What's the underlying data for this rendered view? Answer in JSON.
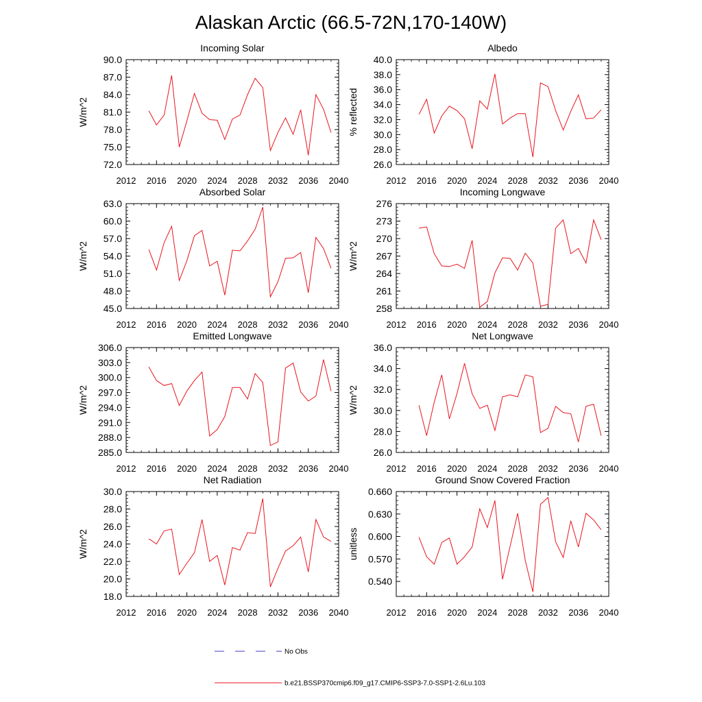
{
  "figure": {
    "title": "Alaskan Arctic (66.5-72N,170-140W)",
    "legend": [
      {
        "label": "No Obs",
        "color": "#3b3bbf",
        "style": "dashed"
      },
      {
        "label": "b.e21.BSSP370cmip6.f09_g17.CMIP6-SSP3-7.0-SSP1-2.6Lu.103",
        "color": "#e8141c",
        "style": "solid"
      }
    ]
  },
  "chart_data": [
    {
      "type": "line",
      "title": "Incoming Solar",
      "ylabel": "W/m^2",
      "xlim": [
        2012,
        2040
      ],
      "xticks": [
        2012,
        2016,
        2020,
        2024,
        2028,
        2032,
        2036,
        2040
      ],
      "ylim": [
        72,
        90
      ],
      "yticks": [
        72,
        75,
        78,
        81,
        84,
        87,
        90
      ],
      "ydecimals": 1,
      "x": [
        2015,
        2016,
        2017,
        2018,
        2019,
        2020,
        2021,
        2022,
        2023,
        2024,
        2025,
        2026,
        2027,
        2028,
        2029,
        2030,
        2031,
        2032,
        2033,
        2034,
        2035,
        2036,
        2037,
        2038,
        2039
      ],
      "series": [
        {
          "name": "b.e21.BSSP370cmip6.f09_g17.CMIP6-SSP3-7.0-SSP1-2.6Lu.103",
          "color": "#e8141c",
          "values": [
            81.2,
            78.8,
            80.5,
            87.3,
            75.0,
            79.5,
            84.2,
            80.8,
            79.7,
            79.6,
            76.3,
            79.8,
            80.5,
            84.0,
            86.8,
            85.2,
            74.4,
            77.5,
            80.0,
            77.2,
            81.4,
            73.6,
            84.0,
            81.5,
            77.5
          ]
        }
      ]
    },
    {
      "type": "line",
      "title": "Albedo",
      "ylabel": "% reflected",
      "xlim": [
        2012,
        2040
      ],
      "xticks": [
        2012,
        2016,
        2020,
        2024,
        2028,
        2032,
        2036,
        2040
      ],
      "ylim": [
        26,
        40
      ],
      "yticks": [
        26,
        28,
        30,
        32,
        34,
        36,
        38,
        40
      ],
      "ydecimals": 1,
      "x": [
        2015,
        2016,
        2017,
        2018,
        2019,
        2020,
        2021,
        2022,
        2023,
        2024,
        2025,
        2026,
        2027,
        2028,
        2029,
        2030,
        2031,
        2032,
        2033,
        2034,
        2035,
        2036,
        2037,
        2038,
        2039
      ],
      "series": [
        {
          "name": "b.e21.BSSP370cmip6.f09_g17.CMIP6-SSP3-7.0-SSP1-2.6Lu.103",
          "color": "#e8141c",
          "values": [
            32.7,
            34.7,
            30.2,
            32.5,
            33.8,
            33.2,
            32.1,
            28.1,
            34.5,
            33.4,
            38.1,
            31.4,
            32.2,
            32.8,
            32.8,
            27.0,
            36.9,
            36.4,
            33.2,
            30.6,
            33.1,
            35.3,
            32.1,
            32.2,
            33.3
          ]
        }
      ]
    },
    {
      "type": "line",
      "title": "Absorbed Solar",
      "ylabel": "W/m^2",
      "xlim": [
        2012,
        2040
      ],
      "xticks": [
        2012,
        2016,
        2020,
        2024,
        2028,
        2032,
        2036,
        2040
      ],
      "ylim": [
        45,
        63
      ],
      "yticks": [
        45,
        48,
        51,
        54,
        57,
        60,
        63
      ],
      "ydecimals": 1,
      "x": [
        2015,
        2016,
        2017,
        2018,
        2019,
        2020,
        2021,
        2022,
        2023,
        2024,
        2025,
        2026,
        2027,
        2028,
        2029,
        2030,
        2031,
        2032,
        2033,
        2034,
        2035,
        2036,
        2037,
        2038,
        2039
      ],
      "series": [
        {
          "name": "b.e21.BSSP370cmip6.f09_g17.CMIP6-SSP3-7.0-SSP1-2.6Lu.103",
          "color": "#e8141c",
          "values": [
            55.1,
            51.6,
            56.3,
            59.1,
            49.8,
            53.2,
            57.5,
            58.4,
            52.3,
            53.1,
            47.3,
            55.0,
            54.9,
            56.6,
            58.6,
            62.4,
            47.0,
            49.6,
            53.6,
            53.7,
            54.6,
            47.7,
            57.2,
            55.3,
            51.9
          ]
        }
      ]
    },
    {
      "type": "line",
      "title": "Incoming Longwave",
      "ylabel": "W/m^2",
      "xlim": [
        2012,
        2040
      ],
      "xticks": [
        2012,
        2016,
        2020,
        2024,
        2028,
        2032,
        2036,
        2040
      ],
      "ylim": [
        258,
        276
      ],
      "yticks": [
        258,
        261,
        264,
        267,
        270,
        273,
        276
      ],
      "ydecimals": 0,
      "x": [
        2015,
        2016,
        2017,
        2018,
        2019,
        2020,
        2021,
        2022,
        2023,
        2024,
        2025,
        2026,
        2027,
        2028,
        2029,
        2030,
        2031,
        2032,
        2033,
        2034,
        2035,
        2036,
        2037,
        2038,
        2039
      ],
      "series": [
        {
          "name": "b.e21.BSSP370cmip6.f09_g17.CMIP6-SSP3-7.0-SSP1-2.6Lu.103",
          "color": "#e8141c",
          "values": [
            271.8,
            272.0,
            267.4,
            265.3,
            265.2,
            265.6,
            264.9,
            269.7,
            258.2,
            259.2,
            264.1,
            266.7,
            266.6,
            264.6,
            267.5,
            265.8,
            258.4,
            258.7,
            271.8,
            273.2,
            267.4,
            268.3,
            265.8,
            273.2,
            269.8
          ]
        }
      ]
    },
    {
      "type": "line",
      "title": "Emitted Longwave",
      "ylabel": "W/m^2",
      "xlim": [
        2012,
        2040
      ],
      "xticks": [
        2012,
        2016,
        2020,
        2024,
        2028,
        2032,
        2036,
        2040
      ],
      "ylim": [
        285,
        306
      ],
      "yticks": [
        285,
        288,
        291,
        294,
        297,
        300,
        303,
        306
      ],
      "ydecimals": 1,
      "x": [
        2015,
        2016,
        2017,
        2018,
        2019,
        2020,
        2021,
        2022,
        2023,
        2024,
        2025,
        2026,
        2027,
        2028,
        2029,
        2030,
        2031,
        2032,
        2033,
        2034,
        2035,
        2036,
        2037,
        2038,
        2039
      ],
      "series": [
        {
          "name": "b.e21.BSSP370cmip6.f09_g17.CMIP6-SSP3-7.0-SSP1-2.6Lu.103",
          "color": "#e8141c",
          "values": [
            302.1,
            299.4,
            298.4,
            298.8,
            294.4,
            297.3,
            299.4,
            301.1,
            288.3,
            289.6,
            292.2,
            298.0,
            298.0,
            295.7,
            300.8,
            299.0,
            286.4,
            287.1,
            301.9,
            302.9,
            297.1,
            295.3,
            296.3,
            303.6,
            297.3
          ]
        }
      ]
    },
    {
      "type": "line",
      "title": "Net Longwave",
      "ylabel": "W/m^2",
      "xlim": [
        2012,
        2040
      ],
      "xticks": [
        2012,
        2016,
        2020,
        2024,
        2028,
        2032,
        2036,
        2040
      ],
      "ylim": [
        26,
        36
      ],
      "yticks": [
        26,
        28,
        30,
        32,
        34,
        36
      ],
      "ydecimals": 1,
      "x": [
        2015,
        2016,
        2017,
        2018,
        2019,
        2020,
        2021,
        2022,
        2023,
        2024,
        2025,
        2026,
        2027,
        2028,
        2029,
        2030,
        2031,
        2032,
        2033,
        2034,
        2035,
        2036,
        2037,
        2038,
        2039
      ],
      "series": [
        {
          "name": "b.e21.BSSP370cmip6.f09_g17.CMIP6-SSP3-7.0-SSP1-2.6Lu.103",
          "color": "#e8141c",
          "values": [
            30.5,
            27.6,
            30.8,
            33.4,
            29.2,
            31.6,
            34.5,
            31.6,
            30.2,
            30.5,
            28.1,
            31.3,
            31.5,
            31.3,
            33.4,
            33.2,
            27.9,
            28.3,
            30.4,
            29.8,
            29.7,
            27.0,
            30.4,
            30.6,
            27.6
          ]
        }
      ]
    },
    {
      "type": "line",
      "title": "Net Radiation",
      "ylabel": "W/m^2",
      "xlim": [
        2012,
        2040
      ],
      "xticks": [
        2012,
        2016,
        2020,
        2024,
        2028,
        2032,
        2036,
        2040
      ],
      "ylim": [
        18,
        30
      ],
      "yticks": [
        18,
        20,
        22,
        24,
        26,
        28,
        30
      ],
      "ydecimals": 1,
      "x": [
        2015,
        2016,
        2017,
        2018,
        2019,
        2020,
        2021,
        2022,
        2023,
        2024,
        2025,
        2026,
        2027,
        2028,
        2029,
        2030,
        2031,
        2032,
        2033,
        2034,
        2035,
        2036,
        2037,
        2038,
        2039
      ],
      "series": [
        {
          "name": "b.e21.BSSP370cmip6.f09_g17.CMIP6-SSP3-7.0-SSP1-2.6Lu.103",
          "color": "#e8141c",
          "values": [
            24.6,
            24.0,
            25.5,
            25.7,
            20.5,
            21.8,
            23.0,
            26.8,
            22.0,
            22.7,
            19.3,
            23.6,
            23.3,
            25.3,
            25.2,
            29.2,
            19.1,
            21.2,
            23.2,
            23.8,
            24.8,
            20.8,
            26.8,
            24.8,
            24.3
          ]
        }
      ]
    },
    {
      "type": "line",
      "title": "Ground Snow Covered Fraction",
      "ylabel": "unitless",
      "xlim": [
        2012,
        2040
      ],
      "xticks": [
        2012,
        2016,
        2020,
        2024,
        2028,
        2032,
        2036,
        2040
      ],
      "ylim": [
        0.52,
        0.66
      ],
      "yticks": [
        0.54,
        0.57,
        0.6,
        0.63,
        0.66
      ],
      "ydecimals": 3,
      "x": [
        2015,
        2016,
        2017,
        2018,
        2019,
        2020,
        2021,
        2022,
        2023,
        2024,
        2025,
        2026,
        2027,
        2028,
        2029,
        2030,
        2031,
        2032,
        2033,
        2034,
        2035,
        2036,
        2037,
        2038,
        2039
      ],
      "series": [
        {
          "name": "b.e21.BSSP370cmip6.f09_g17.CMIP6-SSP3-7.0-SSP1-2.6Lu.103",
          "color": "#e8141c",
          "values": [
            0.599,
            0.573,
            0.563,
            0.592,
            0.598,
            0.563,
            0.573,
            0.586,
            0.637,
            0.612,
            0.648,
            0.543,
            0.587,
            0.631,
            0.568,
            0.526,
            0.643,
            0.652,
            0.593,
            0.572,
            0.621,
            0.586,
            0.631,
            0.622,
            0.609
          ]
        }
      ]
    }
  ]
}
